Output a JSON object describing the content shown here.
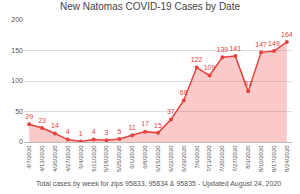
{
  "chart_data": {
    "type": "line",
    "title": "New Natomas COVID-19 Cases by Date",
    "annotations": [
      "Total cases by week for zips 95833, 95834 & 95835 - Updated August 24, 2020"
    ],
    "categories": [
      "4/7/2020",
      "4/13/2020",
      "4/20/2020",
      "4/27/2020",
      "5/4/2020",
      "5/11/2020",
      "5/18/2020",
      "5/25/2020",
      "6/1/2020",
      "6/8/2020",
      "6/15/2020",
      "6/22/2020",
      "6/29/2020",
      "7/6/2020",
      "7/13/2020",
      "7/20/2020",
      "7/27/2020",
      "8/3/2020",
      "8/10/2020",
      "8/17/2020",
      "8/24/2020"
    ],
    "values": [
      29,
      23,
      14,
      4,
      1,
      4,
      3,
      5,
      11,
      17,
      15,
      37,
      68,
      122,
      109,
      139,
      141,
      83,
      147,
      149,
      164
    ],
    "color": "#e8413c",
    "marker": "circle",
    "ylim": [
      0,
      200
    ],
    "yticks": [
      0,
      50,
      100,
      150,
      200
    ],
    "grid": true,
    "data_labels": true
  }
}
